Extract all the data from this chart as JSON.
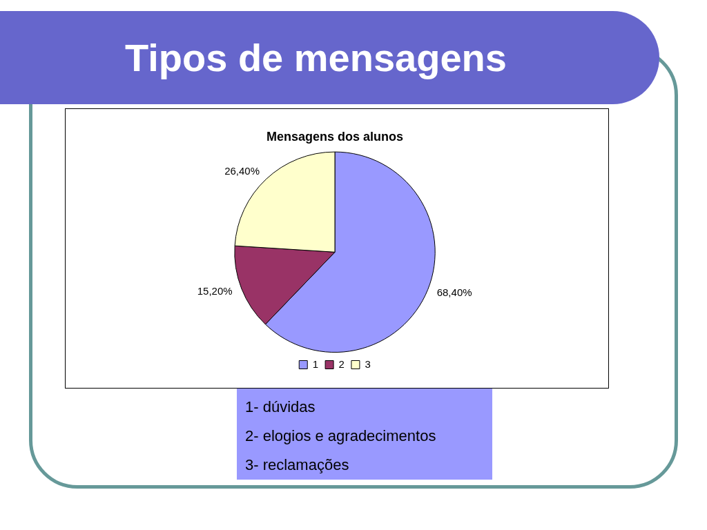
{
  "chart_data": {
    "type": "pie",
    "title": "Tipos de mensagens",
    "subtitle": "Mensagens dos alunos",
    "categories": [
      "1",
      "2",
      "3"
    ],
    "values": [
      68.4,
      15.2,
      26.4
    ],
    "value_labels": [
      "68,40%",
      "15,20%",
      "26,40%"
    ],
    "colors": [
      "#9999ff",
      "#993366",
      "#ffffcc"
    ],
    "legend": "bottom",
    "annotations": [
      "1- dúvidas",
      "2- elogios e agradecimentos",
      "3- reclamações"
    ]
  }
}
